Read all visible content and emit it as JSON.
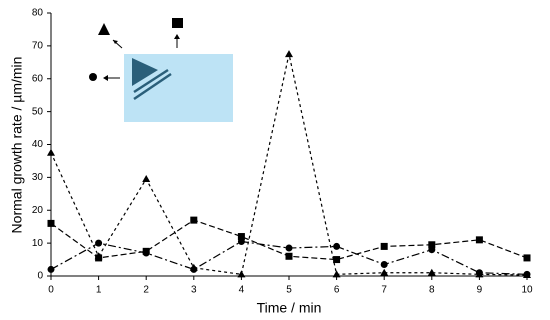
{
  "chart_data": {
    "type": "line",
    "x_label": "Time / min",
    "y_label": "Normal growth rate / µm/min",
    "x": [
      0,
      1,
      2,
      3,
      4,
      5,
      6,
      7,
      8,
      9,
      10
    ],
    "xlim": [
      0,
      10
    ],
    "xticks": [
      0,
      1,
      2,
      3,
      4,
      5,
      6,
      7,
      8,
      9,
      10
    ],
    "ylim": [
      0,
      80
    ],
    "yticks": [
      0,
      10,
      20,
      30,
      40,
      50,
      60,
      70,
      80
    ],
    "grid": false,
    "series": [
      {
        "color": "#000000",
        "marker": "triangle",
        "dash": "3,3",
        "values": [
          37.5,
          6,
          29.5,
          2.5,
          0.5,
          67.5,
          0.5,
          1,
          1,
          0.5,
          0.3
        ]
      },
      {
        "color": "#000000",
        "marker": "square",
        "dash": "6,3",
        "values": [
          16,
          5.5,
          7.5,
          17,
          12,
          6,
          5,
          9,
          9.5,
          11,
          5.5
        ]
      },
      {
        "color": "#000000",
        "marker": "circle",
        "dash": "8,3,2,3",
        "values": [
          2,
          10,
          7,
          2,
          10.5,
          8.5,
          9,
          3.5,
          8,
          1,
          0.5
        ]
      }
    ]
  }
}
